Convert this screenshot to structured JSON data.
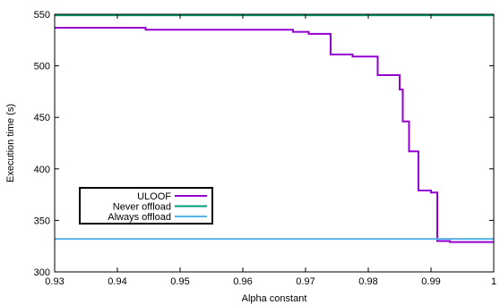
{
  "chart_data": {
    "type": "line",
    "title": "",
    "xlabel": "Alpha constant",
    "ylabel": "Execution time (s)",
    "xlim": [
      0.93,
      1.0
    ],
    "ylim": [
      300,
      550
    ],
    "xticks": [
      0.93,
      0.94,
      0.95,
      0.96,
      0.97,
      0.98,
      0.99,
      1.0
    ],
    "xtick_labels": [
      "0.93",
      "0.94",
      "0.95",
      "0.96",
      "0.97",
      "0.98",
      "0.99",
      "1"
    ],
    "yticks": [
      300,
      350,
      400,
      450,
      500,
      550
    ],
    "ytick_labels": [
      "300",
      "350",
      "400",
      "450",
      "500",
      "550"
    ],
    "grid": false,
    "legend_position": "lower-left",
    "series": [
      {
        "name": "ULOOF",
        "color": "#9400d3",
        "step": true,
        "x": [
          0.93,
          0.9445,
          0.968,
          0.9705,
          0.974,
          0.9775,
          0.9815,
          0.985,
          0.9855,
          0.9865,
          0.987,
          0.988,
          0.99,
          0.991,
          0.993,
          1.0
        ],
        "y": [
          537,
          535,
          533,
          531,
          511,
          509,
          491,
          477,
          446,
          417,
          417,
          379,
          377,
          330,
          329,
          329
        ]
      },
      {
        "name": "Never offload",
        "color": "#009e73",
        "step": false,
        "x": [
          0.93,
          1.0
        ],
        "y": [
          549,
          549
        ]
      },
      {
        "name": "Always offload",
        "color": "#56b4e9",
        "step": false,
        "x": [
          0.93,
          1.0
        ],
        "y": [
          332,
          332
        ]
      }
    ]
  }
}
